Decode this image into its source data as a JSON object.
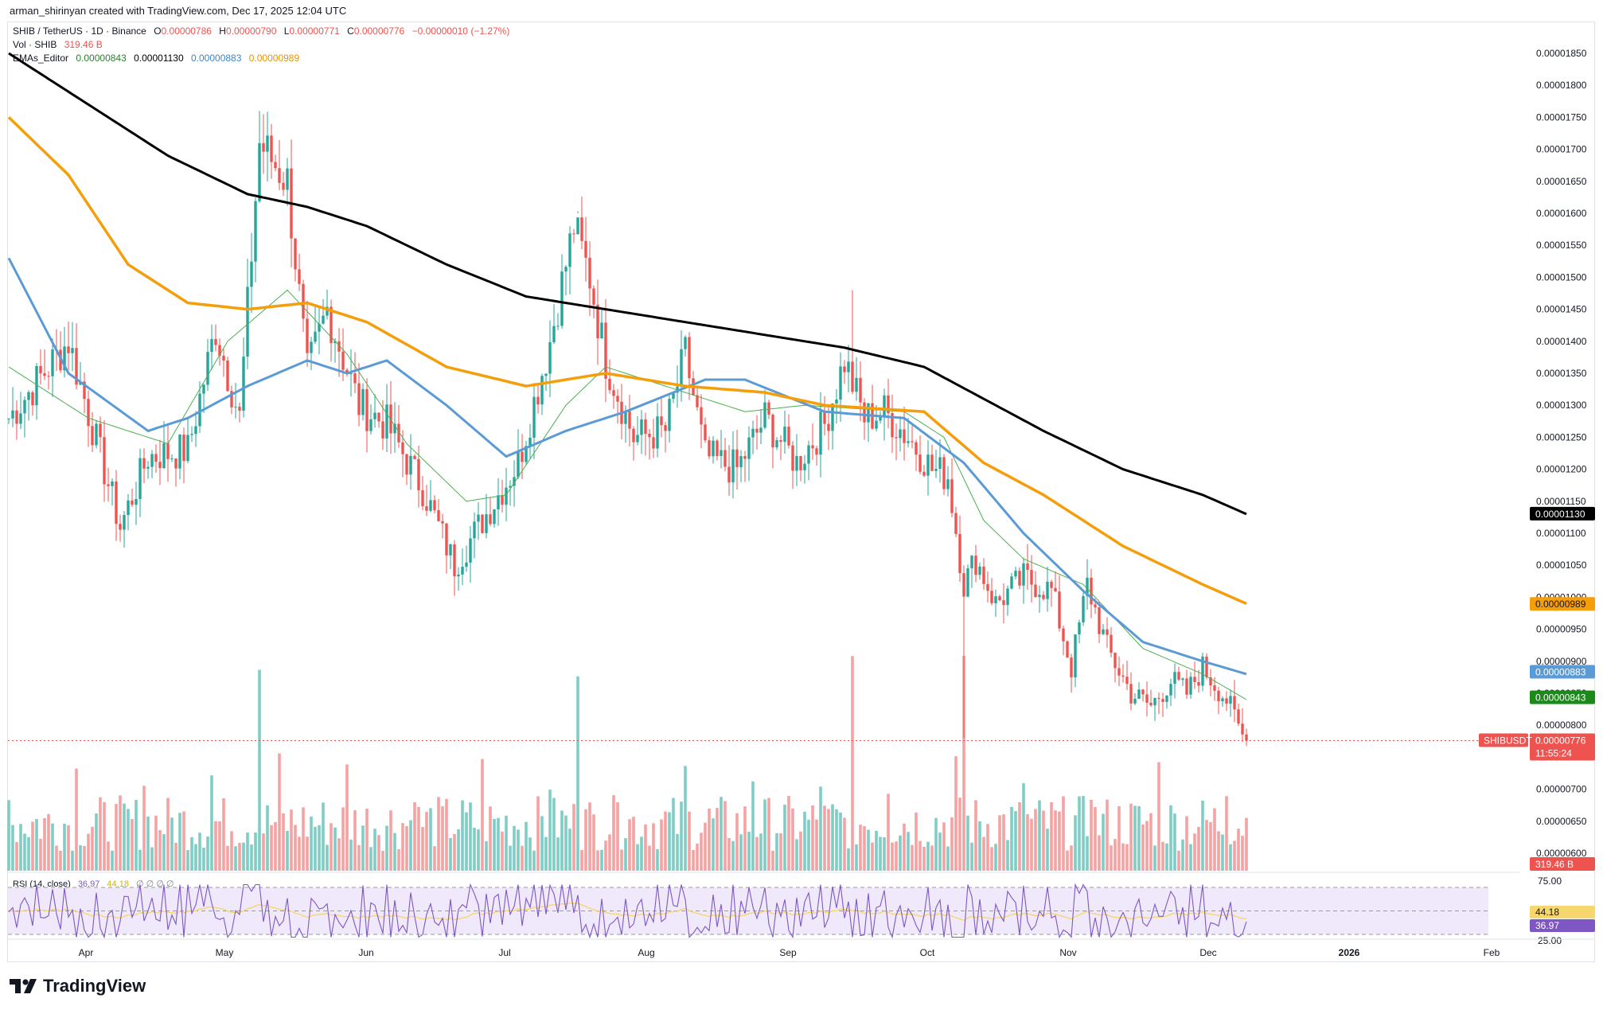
{
  "header": {
    "credit": "arman_shirinyan created with TradingView.com, Dec 17, 2025 12:04 UTC"
  },
  "legend": {
    "symbol": "SHIB / TetherUS · 1D · Binance",
    "o_label": "O",
    "o": "0.00000786",
    "h_label": "H",
    "h": "0.00000790",
    "l_label": "L",
    "l": "0.00000771",
    "c_label": "C",
    "c": "0.00000776",
    "change": "−0.00000010 (−1.27%)",
    "vol_label": "Vol · SHIB",
    "vol": "319.46 B",
    "ema_label": "EMAs_Editor",
    "ema_values": [
      "0.00000843",
      "0.00001130",
      "0.00000883",
      "0.00000989"
    ],
    "rsi_label": "RSI (14, close)",
    "rsi": "36.97",
    "rsi_ma": "44.18",
    "rsi_extra": "∅ ∅ ∅ ∅"
  },
  "colors": {
    "up": "#26a69a",
    "down": "#ef5350",
    "vol_up": "#7fcdc4",
    "vol_down": "#f4a3a2",
    "ema20": "#4caf50",
    "ema50": "#5b9bd5",
    "ema100": "#f59e0b",
    "ema200": "#000000",
    "rsi": "#7e57c2",
    "rsi_ma": "#f5d76e",
    "rsi_band": "#efe9fb"
  },
  "price_axis": {
    "ticks": [
      "0.00001850",
      "0.00001800",
      "0.00001750",
      "0.00001700",
      "0.00001650",
      "0.00001600",
      "0.00001550",
      "0.00001500",
      "0.00001450",
      "0.00001400",
      "0.00001350",
      "0.00001300",
      "0.00001250",
      "0.00001200",
      "0.00001150",
      "0.00001100",
      "0.00001050",
      "0.00001000",
      "0.00000950",
      "0.00000900",
      "0.00000850",
      "0.00000800",
      "0.00000750",
      "0.00000700",
      "0.00000650",
      "0.00000600"
    ],
    "labels": {
      "ema200": "0.00001130",
      "ema100": "0.00000989",
      "ema50": "0.00000883",
      "ema20": "0.00000843",
      "symbol_tag": "SHIBUSDT",
      "last": "0.00000776",
      "countdown": "11:55:24",
      "volume": "319.46 B"
    }
  },
  "rsi_axis": {
    "top": "75.00",
    "bottom": "25.00",
    "ma_val": "44.18",
    "rsi_val": "36.97"
  },
  "time_axis": [
    "Apr",
    "May",
    "Jun",
    "Jul",
    "Aug",
    "Sep",
    "Oct",
    "Nov",
    "Dec",
    "2026",
    "Feb"
  ],
  "footer": {
    "brand": "TradingView"
  },
  "chart_data": {
    "type": "candlestick",
    "symbol": "SHIBUSDT",
    "interval": "1D",
    "ylim": [
      5.8e-06,
      1.88e-05
    ],
    "rsi_bands": [
      25,
      75
    ],
    "anchors": {
      "close": [
        [
          0,
          1.28e-05
        ],
        [
          15,
          1.4e-05
        ],
        [
          28,
          1.11e-05
        ],
        [
          35,
          1.22e-05
        ],
        [
          45,
          1.23e-05
        ],
        [
          52,
          1.42e-05
        ],
        [
          58,
          1.28e-05
        ],
        [
          63,
          1.71e-05
        ],
        [
          70,
          1.65e-05
        ],
        [
          75,
          1.35e-05
        ],
        [
          80,
          1.45e-05
        ],
        [
          88,
          1.3e-05
        ],
        [
          95,
          1.27e-05
        ],
        [
          104,
          1.17e-05
        ],
        [
          112,
          1.05e-05
        ],
        [
          120,
          1.13e-05
        ],
        [
          128,
          1.21e-05
        ],
        [
          136,
          1.4e-05
        ],
        [
          142,
          1.58e-05
        ],
        [
          146,
          1.5e-05
        ],
        [
          150,
          1.37e-05
        ],
        [
          157,
          1.25e-05
        ],
        [
          165,
          1.26e-05
        ],
        [
          170,
          1.38e-05
        ],
        [
          175,
          1.22e-05
        ],
        [
          183,
          1.2e-05
        ],
        [
          190,
          1.28e-05
        ],
        [
          198,
          1.21e-05
        ],
        [
          205,
          1.27e-05
        ],
        [
          210,
          1.37e-05
        ],
        [
          215,
          1.28e-05
        ],
        [
          220,
          1.29e-05
        ],
        [
          226,
          1.25e-05
        ],
        [
          232,
          1.2e-05
        ],
        [
          236,
          1.19e-05
        ],
        [
          240,
          1.02e-05
        ],
        [
          243,
          1.06e-05
        ],
        [
          248,
          9.9e-06
        ],
        [
          255,
          1.03e-05
        ],
        [
          262,
          1.01e-05
        ],
        [
          267,
          8.9e-06
        ],
        [
          271,
          1.02e-05
        ],
        [
          276,
          9.2e-06
        ],
        [
          282,
          8.5e-06
        ],
        [
          287,
          8.3e-06
        ],
        [
          292,
          8.7e-06
        ],
        [
          296,
          8.5e-06
        ],
        [
          300,
          8.9e-06
        ],
        [
          306,
          8.4e-06
        ],
        [
          311,
          7.7e-06
        ]
      ]
    },
    "ema_anchors": {
      "ema20": [
        [
          0,
          1.36e-05
        ],
        [
          20,
          1.28e-05
        ],
        [
          40,
          1.24e-05
        ],
        [
          55,
          1.4e-05
        ],
        [
          70,
          1.48e-05
        ],
        [
          85,
          1.38e-05
        ],
        [
          100,
          1.24e-05
        ],
        [
          115,
          1.15e-05
        ],
        [
          125,
          1.16e-05
        ],
        [
          140,
          1.3e-05
        ],
        [
          150,
          1.36e-05
        ],
        [
          165,
          1.33e-05
        ],
        [
          185,
          1.29e-05
        ],
        [
          200,
          1.3e-05
        ],
        [
          225,
          1.29e-05
        ],
        [
          235,
          1.25e-05
        ],
        [
          245,
          1.12e-05
        ],
        [
          255,
          1.06e-05
        ],
        [
          270,
          1.02e-05
        ],
        [
          285,
          9.2e-06
        ],
        [
          300,
          8.8e-06
        ],
        [
          311,
          8.4e-06
        ]
      ],
      "ema50": [
        [
          0,
          1.53e-05
        ],
        [
          15,
          1.35e-05
        ],
        [
          35,
          1.26e-05
        ],
        [
          45,
          1.28e-05
        ],
        [
          60,
          1.33e-05
        ],
        [
          75,
          1.37e-05
        ],
        [
          85,
          1.35e-05
        ],
        [
          95,
          1.37e-05
        ],
        [
          110,
          1.3e-05
        ],
        [
          125,
          1.22e-05
        ],
        [
          140,
          1.26e-05
        ],
        [
          155,
          1.29e-05
        ],
        [
          175,
          1.34e-05
        ],
        [
          185,
          1.34e-05
        ],
        [
          205,
          1.29e-05
        ],
        [
          225,
          1.28e-05
        ],
        [
          240,
          1.21e-05
        ],
        [
          255,
          1.1e-05
        ],
        [
          270,
          1.01e-05
        ],
        [
          285,
          9.3e-06
        ],
        [
          300,
          9e-06
        ],
        [
          311,
          8.8e-06
        ]
      ],
      "ema100": [
        [
          0,
          1.75e-05
        ],
        [
          15,
          1.66e-05
        ],
        [
          30,
          1.52e-05
        ],
        [
          45,
          1.46e-05
        ],
        [
          60,
          1.45e-05
        ],
        [
          75,
          1.46e-05
        ],
        [
          90,
          1.43e-05
        ],
        [
          110,
          1.36e-05
        ],
        [
          130,
          1.33e-05
        ],
        [
          150,
          1.35e-05
        ],
        [
          170,
          1.33e-05
        ],
        [
          190,
          1.32e-05
        ],
        [
          205,
          1.3e-05
        ],
        [
          230,
          1.29e-05
        ],
        [
          245,
          1.21e-05
        ],
        [
          260,
          1.16e-05
        ],
        [
          280,
          1.08e-05
        ],
        [
          300,
          1.02e-05
        ],
        [
          311,
          9.9e-06
        ]
      ],
      "ema200": [
        [
          0,
          1.85e-05
        ],
        [
          20,
          1.77e-05
        ],
        [
          40,
          1.69e-05
        ],
        [
          60,
          1.63e-05
        ],
        [
          75,
          1.61e-05
        ],
        [
          90,
          1.58e-05
        ],
        [
          110,
          1.52e-05
        ],
        [
          130,
          1.47e-05
        ],
        [
          150,
          1.45e-05
        ],
        [
          170,
          1.43e-05
        ],
        [
          190,
          1.41e-05
        ],
        [
          210,
          1.39e-05
        ],
        [
          230,
          1.36e-05
        ],
        [
          245,
          1.31e-05
        ],
        [
          260,
          1.26e-05
        ],
        [
          280,
          1.2e-05
        ],
        [
          300,
          1.16e-05
        ],
        [
          311,
          1.13e-05
        ]
      ]
    },
    "last_close": 7.76e-06
  }
}
